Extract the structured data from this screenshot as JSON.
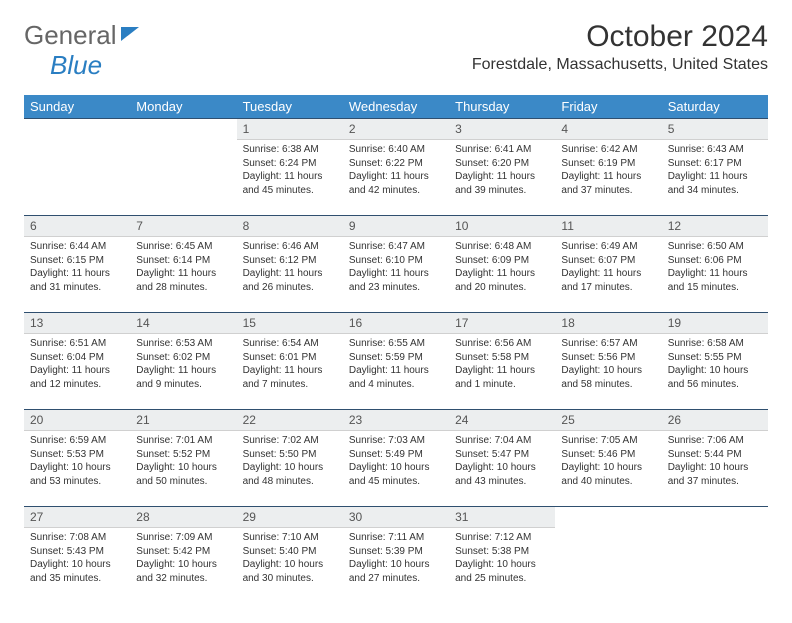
{
  "logo": {
    "part1": "General",
    "part2": "Blue"
  },
  "title": "October 2024",
  "location": "Forestdale, Massachusetts, United States",
  "header_bg": "#3b89c7",
  "daynum_bg": "#eceeef",
  "daynum_border_top": "#2f4f6f",
  "days": [
    "Sunday",
    "Monday",
    "Tuesday",
    "Wednesday",
    "Thursday",
    "Friday",
    "Saturday"
  ],
  "weeks": [
    [
      null,
      null,
      {
        "n": "1",
        "sr": "6:38 AM",
        "ss": "6:24 PM",
        "dl": "11 hours and 45 minutes."
      },
      {
        "n": "2",
        "sr": "6:40 AM",
        "ss": "6:22 PM",
        "dl": "11 hours and 42 minutes."
      },
      {
        "n": "3",
        "sr": "6:41 AM",
        "ss": "6:20 PM",
        "dl": "11 hours and 39 minutes."
      },
      {
        "n": "4",
        "sr": "6:42 AM",
        "ss": "6:19 PM",
        "dl": "11 hours and 37 minutes."
      },
      {
        "n": "5",
        "sr": "6:43 AM",
        "ss": "6:17 PM",
        "dl": "11 hours and 34 minutes."
      }
    ],
    [
      {
        "n": "6",
        "sr": "6:44 AM",
        "ss": "6:15 PM",
        "dl": "11 hours and 31 minutes."
      },
      {
        "n": "7",
        "sr": "6:45 AM",
        "ss": "6:14 PM",
        "dl": "11 hours and 28 minutes."
      },
      {
        "n": "8",
        "sr": "6:46 AM",
        "ss": "6:12 PM",
        "dl": "11 hours and 26 minutes."
      },
      {
        "n": "9",
        "sr": "6:47 AM",
        "ss": "6:10 PM",
        "dl": "11 hours and 23 minutes."
      },
      {
        "n": "10",
        "sr": "6:48 AM",
        "ss": "6:09 PM",
        "dl": "11 hours and 20 minutes."
      },
      {
        "n": "11",
        "sr": "6:49 AM",
        "ss": "6:07 PM",
        "dl": "11 hours and 17 minutes."
      },
      {
        "n": "12",
        "sr": "6:50 AM",
        "ss": "6:06 PM",
        "dl": "11 hours and 15 minutes."
      }
    ],
    [
      {
        "n": "13",
        "sr": "6:51 AM",
        "ss": "6:04 PM",
        "dl": "11 hours and 12 minutes."
      },
      {
        "n": "14",
        "sr": "6:53 AM",
        "ss": "6:02 PM",
        "dl": "11 hours and 9 minutes."
      },
      {
        "n": "15",
        "sr": "6:54 AM",
        "ss": "6:01 PM",
        "dl": "11 hours and 7 minutes."
      },
      {
        "n": "16",
        "sr": "6:55 AM",
        "ss": "5:59 PM",
        "dl": "11 hours and 4 minutes."
      },
      {
        "n": "17",
        "sr": "6:56 AM",
        "ss": "5:58 PM",
        "dl": "11 hours and 1 minute."
      },
      {
        "n": "18",
        "sr": "6:57 AM",
        "ss": "5:56 PM",
        "dl": "10 hours and 58 minutes."
      },
      {
        "n": "19",
        "sr": "6:58 AM",
        "ss": "5:55 PM",
        "dl": "10 hours and 56 minutes."
      }
    ],
    [
      {
        "n": "20",
        "sr": "6:59 AM",
        "ss": "5:53 PM",
        "dl": "10 hours and 53 minutes."
      },
      {
        "n": "21",
        "sr": "7:01 AM",
        "ss": "5:52 PM",
        "dl": "10 hours and 50 minutes."
      },
      {
        "n": "22",
        "sr": "7:02 AM",
        "ss": "5:50 PM",
        "dl": "10 hours and 48 minutes."
      },
      {
        "n": "23",
        "sr": "7:03 AM",
        "ss": "5:49 PM",
        "dl": "10 hours and 45 minutes."
      },
      {
        "n": "24",
        "sr": "7:04 AM",
        "ss": "5:47 PM",
        "dl": "10 hours and 43 minutes."
      },
      {
        "n": "25",
        "sr": "7:05 AM",
        "ss": "5:46 PM",
        "dl": "10 hours and 40 minutes."
      },
      {
        "n": "26",
        "sr": "7:06 AM",
        "ss": "5:44 PM",
        "dl": "10 hours and 37 minutes."
      }
    ],
    [
      {
        "n": "27",
        "sr": "7:08 AM",
        "ss": "5:43 PM",
        "dl": "10 hours and 35 minutes."
      },
      {
        "n": "28",
        "sr": "7:09 AM",
        "ss": "5:42 PM",
        "dl": "10 hours and 32 minutes."
      },
      {
        "n": "29",
        "sr": "7:10 AM",
        "ss": "5:40 PM",
        "dl": "10 hours and 30 minutes."
      },
      {
        "n": "30",
        "sr": "7:11 AM",
        "ss": "5:39 PM",
        "dl": "10 hours and 27 minutes."
      },
      {
        "n": "31",
        "sr": "7:12 AM",
        "ss": "5:38 PM",
        "dl": "10 hours and 25 minutes."
      },
      null,
      null
    ]
  ]
}
